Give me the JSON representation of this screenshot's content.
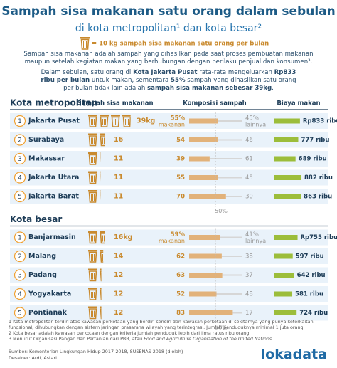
{
  "title": "Sampah sisa makanan satu orang dalam sebulan",
  "subtitle": "di kota metropolitan¹ dan kota besar²",
  "legend": {
    "value": 10,
    "label": "= 10 kg sampah sisa makanan satu orang per bulan"
  },
  "intro1": "Sampah sisa makanan adalah sampah yang dihasilkan pada saat proses pembuatan makanan maupun setelah kegiatan makan yang berhubungan dengan perilaku penjual dan konsumen³.",
  "intro2": [
    {
      "text": "Dalam sebulan, satu orang di "
    },
    {
      "text": "Kota Jakarta Pusat",
      "bold": true
    },
    {
      "text": " rata-rata mengeluarkan "
    },
    {
      "text": "Rp833 ribu per bulan",
      "bold": true
    },
    {
      "text": " untuk makan, sementara "
    },
    {
      "text": "55%",
      "bold": true
    },
    {
      "text": " sampah yang dihasilkan satu orang per bulan tidak lain adalah "
    },
    {
      "text": "sampah sisa makanan sebesar 39kg",
      "bold": true
    },
    {
      "text": "."
    }
  ],
  "columns": [
    "Sampah sisa makanan",
    "Komposisi sampah",
    "Biaya makan"
  ],
  "composition_lim": [
    0,
    100
  ],
  "composition_mid": {
    "value": 50,
    "label": "50%"
  },
  "sections": [
    {
      "header": "Kota metropolitan",
      "rows": [
        {
          "rank": 1,
          "city": "Jakarta Pusat",
          "waste": 39,
          "waste_label": "39kg",
          "food": 55,
          "food_label": "55%",
          "food_caption": "makanan",
          "other": 45,
          "other_label": "45%",
          "other_caption": "lainnya",
          "cost": 833,
          "cost_label": "Rp833 ribu"
        },
        {
          "rank": 2,
          "city": "Surabaya",
          "waste": 16,
          "food": 54,
          "other": 46,
          "cost": 777,
          "cost_label": "777 ribu"
        },
        {
          "rank": 3,
          "city": "Makassar",
          "waste": 11,
          "food": 39,
          "other": 61,
          "cost": 689,
          "cost_label": "689 ribu"
        },
        {
          "rank": 4,
          "city": "Jakarta Utara",
          "waste": 11,
          "food": 55,
          "other": 45,
          "cost": 882,
          "cost_label": "882 ribu"
        },
        {
          "rank": 5,
          "city": "Jakarta Barat",
          "waste": 11,
          "food": 70,
          "other": 30,
          "cost": 863,
          "cost_label": "863 ribu"
        }
      ]
    },
    {
      "header": "Kota besar",
      "rows": [
        {
          "rank": 1,
          "city": "Banjarmasin",
          "waste": 16,
          "waste_label": "16kg",
          "food": 59,
          "food_label": "59%",
          "food_caption": "makanan",
          "other": 41,
          "other_label": "41%",
          "other_caption": "lainnya",
          "cost": 755,
          "cost_label": "Rp755 ribu"
        },
        {
          "rank": 2,
          "city": "Malang",
          "waste": 14,
          "food": 62,
          "other": 38,
          "cost": 597,
          "cost_label": "597 ribu"
        },
        {
          "rank": 3,
          "city": "Padang",
          "waste": 12,
          "food": 63,
          "other": 37,
          "cost": 642,
          "cost_label": "642 ribu"
        },
        {
          "rank": 4,
          "city": "Yogyakarta",
          "waste": 12,
          "food": 52,
          "other": 48,
          "cost": 581,
          "cost_label": "581 ribu"
        },
        {
          "rank": 5,
          "city": "Pontianak",
          "waste": 12,
          "food": 83,
          "other": 17,
          "cost": 724,
          "cost_label": "724 ribu"
        }
      ]
    }
  ],
  "footnotes": [
    [
      {
        "text": "1 Kota metropolitan terdiri atas kawasan perkotaan yang berdiri sendiri dan kawasan perkotaan di sekitarnya yang punya keterkaitan fungsional, dihubungkan dengan sistem jaringan prasarana wilayah yang terintegrasi. Jumlah penduduknya minimal 1 juta orang."
      }
    ],
    [
      {
        "text": "2 Kota besar adalah kawasan perkotaan dengan kriteria jumlah penduduk lebih dari lima ratus ribu orang."
      }
    ],
    [
      {
        "text": "3 Menurut Organisasi Pangan dan Pertanian dari PBB, atau "
      },
      {
        "text": "Food and Agriculture Organization of the United Nations",
        "italic": true
      },
      {
        "text": "."
      }
    ]
  ],
  "source": "Sumber: Kementerian Lingkungan Hidup 2017-2018, SUSENAS 2018 (diolah)",
  "designer": "Desainer: Ardi, Astari",
  "logo": "lokadata"
}
